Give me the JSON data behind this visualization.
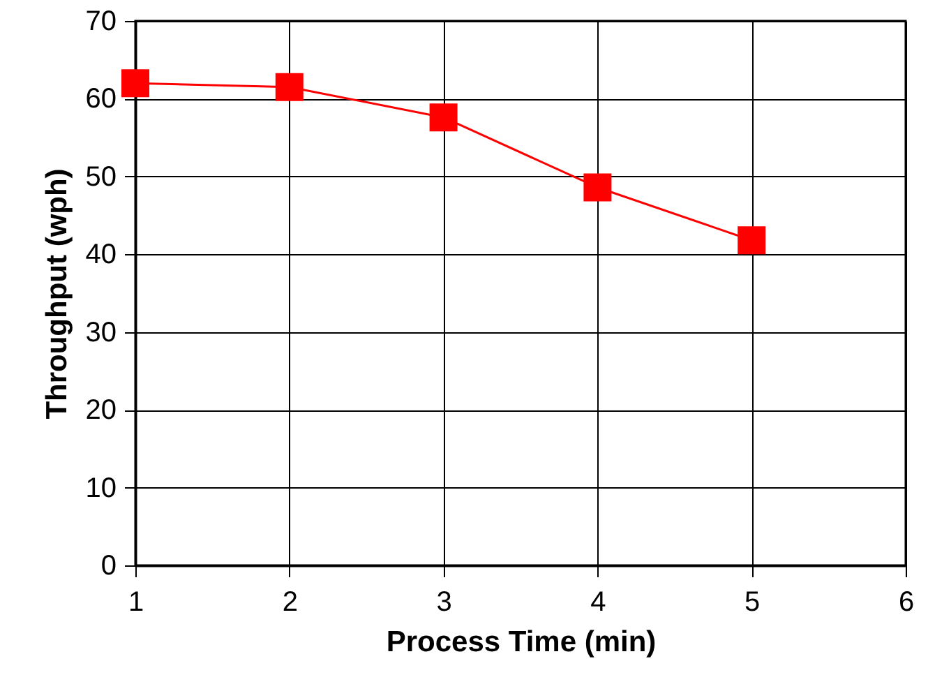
{
  "chart_data": {
    "type": "line",
    "xlabel": "Process Time (min)",
    "ylabel": "Throughput (wph)",
    "x": [
      1,
      2,
      3,
      4,
      5
    ],
    "series": [
      {
        "color": "#ff0000",
        "values": [
          62,
          61.5,
          57.6,
          48.6,
          41.8
        ]
      }
    ],
    "xlim": [
      1,
      6
    ],
    "xticks": [
      1,
      2,
      3,
      4,
      5,
      6
    ],
    "ylim": [
      0,
      70
    ],
    "yticks": [
      0,
      10,
      20,
      30,
      40,
      50,
      60,
      70
    ],
    "grid": true,
    "marker": "square",
    "line_style": "solid"
  }
}
